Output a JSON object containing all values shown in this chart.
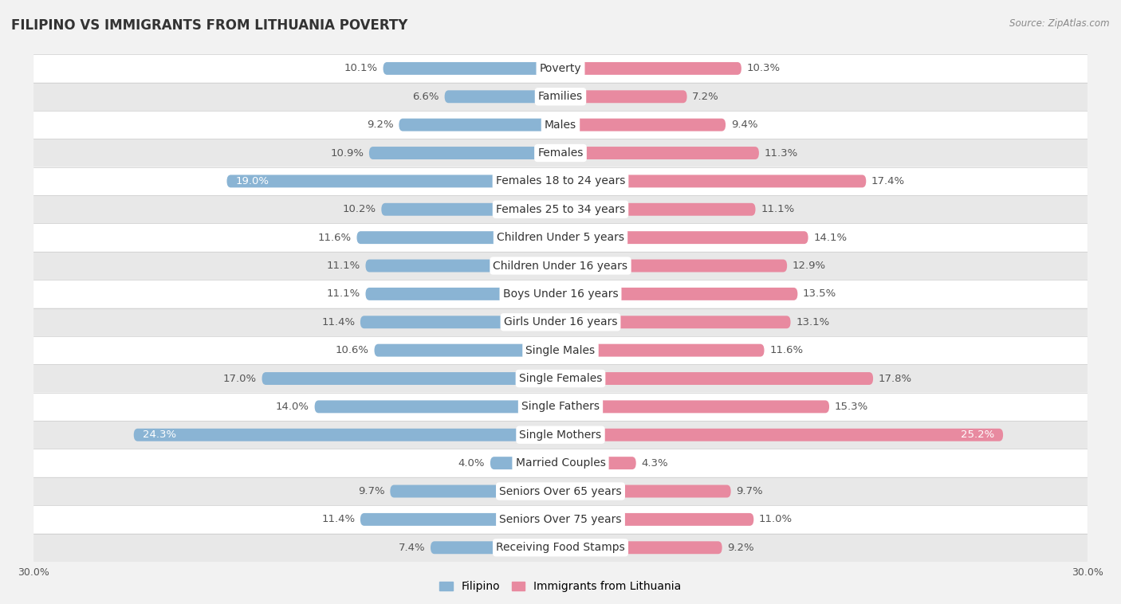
{
  "title": "FILIPINO VS IMMIGRANTS FROM LITHUANIA POVERTY",
  "source": "Source: ZipAtlas.com",
  "categories": [
    "Poverty",
    "Families",
    "Males",
    "Females",
    "Females 18 to 24 years",
    "Females 25 to 34 years",
    "Children Under 5 years",
    "Children Under 16 years",
    "Boys Under 16 years",
    "Girls Under 16 years",
    "Single Males",
    "Single Females",
    "Single Fathers",
    "Single Mothers",
    "Married Couples",
    "Seniors Over 65 years",
    "Seniors Over 75 years",
    "Receiving Food Stamps"
  ],
  "filipino": [
    10.1,
    6.6,
    9.2,
    10.9,
    19.0,
    10.2,
    11.6,
    11.1,
    11.1,
    11.4,
    10.6,
    17.0,
    14.0,
    24.3,
    4.0,
    9.7,
    11.4,
    7.4
  ],
  "lithuania": [
    10.3,
    7.2,
    9.4,
    11.3,
    17.4,
    11.1,
    14.1,
    12.9,
    13.5,
    13.1,
    11.6,
    17.8,
    15.3,
    25.2,
    4.3,
    9.7,
    11.0,
    9.2
  ],
  "filipino_color": "#8ab4d4",
  "lithuania_color": "#e88aa0",
  "bg_color": "#f2f2f2",
  "row_color_light": "#ffffff",
  "row_color_dark": "#e8e8e8",
  "axis_max": 30.0,
  "label_fontsize": 9.5,
  "title_fontsize": 12,
  "cat_fontsize": 10,
  "legend_labels": [
    "Filipino",
    "Immigrants from Lithuania"
  ],
  "inside_label_threshold_fil": 18.0,
  "inside_label_threshold_lit": 24.0
}
